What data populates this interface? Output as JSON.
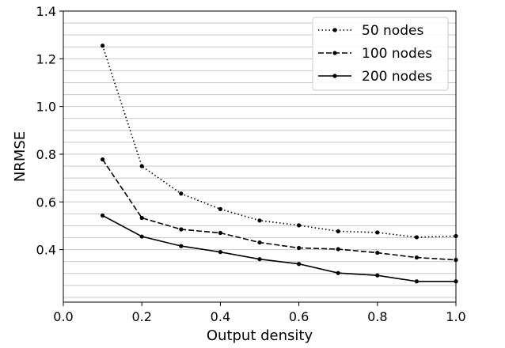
{
  "chart_data": {
    "type": "line",
    "title": "",
    "xlabel": "Output density",
    "ylabel": "NRMSE",
    "xlim": [
      0.0,
      1.0
    ],
    "ylim": [
      0.18,
      1.4
    ],
    "xticks": [
      "0.0",
      "0.2",
      "0.4",
      "0.6",
      "0.8",
      "1.0"
    ],
    "yticks": [
      "0.4",
      "0.6",
      "0.8",
      "1.0",
      "1.2",
      "1.4"
    ],
    "grid": "horizontal",
    "legend_position": "top-right",
    "x": [
      0.1,
      0.2,
      0.3,
      0.4,
      0.5,
      0.6,
      0.7,
      0.8,
      0.9,
      1.0
    ],
    "series": [
      {
        "name": "50 nodes",
        "line_style": "dotted",
        "color": "#000000",
        "values": [
          1.255,
          0.75,
          0.635,
          0.57,
          0.522,
          0.502,
          0.477,
          0.472,
          0.452,
          0.457
        ]
      },
      {
        "name": "100 nodes",
        "line_style": "dashed",
        "color": "#000000",
        "values": [
          0.778,
          0.533,
          0.485,
          0.47,
          0.43,
          0.407,
          0.402,
          0.387,
          0.367,
          0.357
        ]
      },
      {
        "name": "200 nodes",
        "line_style": "solid",
        "color": "#000000",
        "values": [
          0.543,
          0.455,
          0.415,
          0.39,
          0.36,
          0.34,
          0.302,
          0.292,
          0.267,
          0.267
        ]
      }
    ]
  }
}
